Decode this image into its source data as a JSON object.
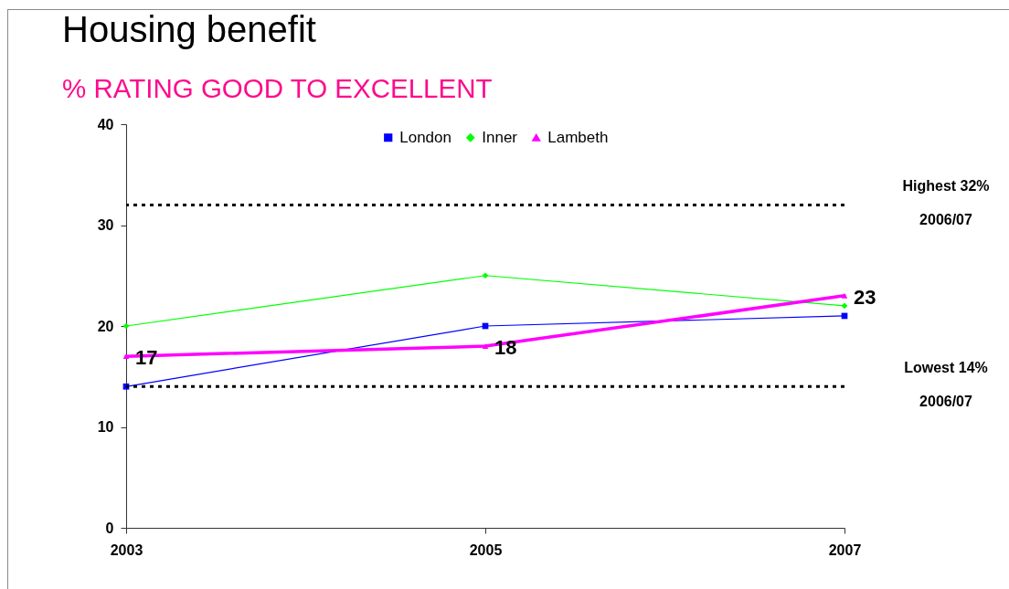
{
  "chart_data": {
    "type": "line",
    "title": "Housing benefit",
    "subtitle": "% RATING GOOD TO EXCELLENT",
    "x": [
      2003,
      2005,
      2007
    ],
    "xlim": [
      2003,
      2007
    ],
    "xticks": [
      2003,
      2005,
      2007
    ],
    "ylim": [
      0,
      40
    ],
    "yticks": [
      0,
      10,
      20,
      30,
      40
    ],
    "series": [
      {
        "name": "London",
        "color": "#0000ff",
        "marker": "square",
        "values": [
          14,
          20,
          21
        ]
      },
      {
        "name": "Inner",
        "color": "#00ff00",
        "marker": "diamond",
        "values": [
          20,
          25,
          22
        ]
      },
      {
        "name": "Lambeth",
        "color": "#ff00ff",
        "marker": "triangle",
        "values": [
          17,
          18,
          23
        ],
        "data_labels": true
      }
    ],
    "ref_lines": [
      {
        "axis": "y",
        "value": 32,
        "label": "Highest 32%\n2006/07",
        "color": "#000000",
        "line_style": "dotted"
      },
      {
        "axis": "y",
        "value": 14,
        "label": "Lowest 14%\n2006/07",
        "color": "#000000",
        "line_style": "dotted"
      }
    ],
    "legend": "top"
  }
}
